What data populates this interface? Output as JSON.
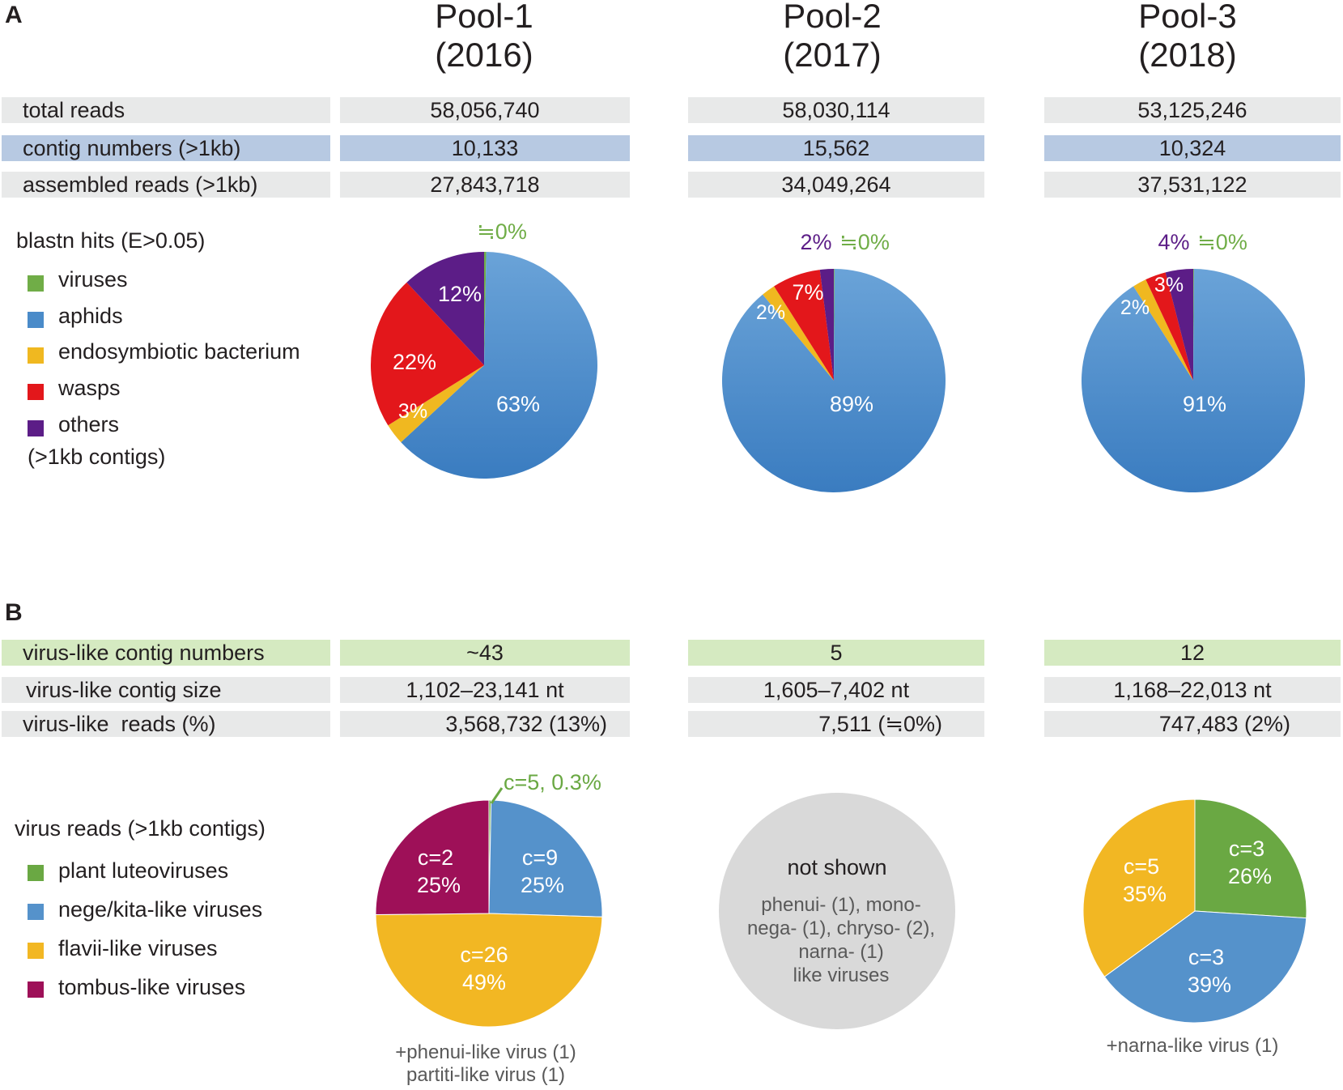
{
  "panelA": {
    "letter": "A",
    "pools": [
      {
        "name": "Pool-1",
        "year": "(2016)"
      },
      {
        "name": "Pool-2",
        "year": "(2017)"
      },
      {
        "name": "Pool-3",
        "year": "(2018)"
      }
    ],
    "rows": [
      {
        "label": "total reads",
        "values": [
          "58,056,740",
          "58,030,114",
          "53,125,246"
        ]
      },
      {
        "label": "contig numbers (>1kb)",
        "values": [
          "10,133",
          "15,562",
          "10,324"
        ]
      },
      {
        "label": "assembled reads (>1kb)",
        "values": [
          "27,843,718",
          "34,049,264",
          "37,531,122"
        ]
      }
    ],
    "legend": {
      "title": "blastn hits (E>0.05)",
      "items": [
        "viruses",
        "aphids",
        "endosymbiotic bacterium",
        "wasps",
        "others"
      ],
      "footer": "(>1kb contigs)"
    }
  },
  "panelB": {
    "letter": "B",
    "rows": [
      {
        "label": "virus-like contig numbers",
        "values": [
          "~43",
          "5",
          "12"
        ]
      },
      {
        "label": "virus-like contig size",
        "values": [
          "1,102–23,141 nt",
          "1,605–7,402 nt",
          "1,168–22,013 nt"
        ]
      },
      {
        "label": "virus-like  reads (%)",
        "values": [
          "3,568,732 (13%)",
          "7,511 (≒0%)",
          "747,483 (2%)"
        ]
      }
    ],
    "legend": {
      "title": "virus reads (>1kb contigs)",
      "items": [
        "plant luteoviruses",
        "nege/kita-like viruses",
        "flavii-like viruses",
        "tombus-like viruses"
      ]
    },
    "not_shown": {
      "title": "not shown",
      "lines": [
        "phenui- (1), mono-",
        "nega- (1), chryso- (2),",
        "narna- (1)",
        "like viruses"
      ]
    },
    "notes": {
      "pool1_line1": "+phenui-like virus (1)",
      "pool1_line2": "partiti-like virus (1)",
      "pool3": "+narna-like virus (1)"
    }
  },
  "colors": {
    "virus_green": "#70ad47",
    "aphid_blue": "#4a8bc9",
    "endo_yellow": "#f0b820",
    "wasp_red": "#e3171b",
    "others_purple": "#5c1d87",
    "lutео_green": "#6aa843",
    "nege_blue": "#5592cb",
    "flavi_yellow": "#f2b723",
    "tombus_magenta": "#9e1058",
    "not_shown_gray": "#d9d9d9"
  },
  "chart_data": [
    {
      "type": "pie",
      "title": "Pool-1 (2016) blastn hits",
      "categories": [
        "viruses",
        "aphids",
        "endosymbiotic bacterium",
        "wasps",
        "others"
      ],
      "values": [
        0.3,
        63,
        3,
        22,
        12
      ],
      "labels": [
        "≒0%",
        "63%",
        "3%",
        "22%",
        "12%"
      ]
    },
    {
      "type": "pie",
      "title": "Pool-2 (2017) blastn hits",
      "categories": [
        "viruses",
        "aphids",
        "endosymbiotic bacterium",
        "wasps",
        "others"
      ],
      "values": [
        0.1,
        89,
        2,
        7,
        2
      ],
      "labels": [
        "≒0%",
        "89%",
        "2%",
        "7%",
        "2%"
      ]
    },
    {
      "type": "pie",
      "title": "Pool-3 (2018) blastn hits",
      "categories": [
        "viruses",
        "aphids",
        "endosymbiotic bacterium",
        "wasps",
        "others"
      ],
      "values": [
        0.1,
        91,
        2,
        3,
        4
      ],
      "labels": [
        "≒0%",
        "91%",
        "2%",
        "3%",
        "4%"
      ]
    },
    {
      "type": "pie",
      "title": "Pool-1 (2016) virus reads",
      "categories": [
        "plant luteoviruses",
        "nege/kita-like viruses",
        "flavii-like viruses",
        "tombus-like viruses"
      ],
      "values": [
        0.3,
        25,
        49,
        25
      ],
      "labels": [
        "c=5, 0.3%",
        "c=9 25%",
        "c=26 49%",
        "c=2 25%"
      ],
      "counts": [
        "c=5",
        "c=9",
        "c=26",
        "c=2"
      ],
      "percents": [
        "0.3%",
        "25%",
        "49%",
        "25%"
      ]
    },
    {
      "type": "pie",
      "title": "Pool-3 (2018) virus reads",
      "categories": [
        "plant luteoviruses",
        "nege/kita-like viruses",
        "flavii-like viruses"
      ],
      "values": [
        26,
        39,
        35
      ],
      "counts": [
        "c=3",
        "c=3",
        "c=5"
      ],
      "percents": [
        "26%",
        "39%",
        "35%"
      ]
    }
  ]
}
